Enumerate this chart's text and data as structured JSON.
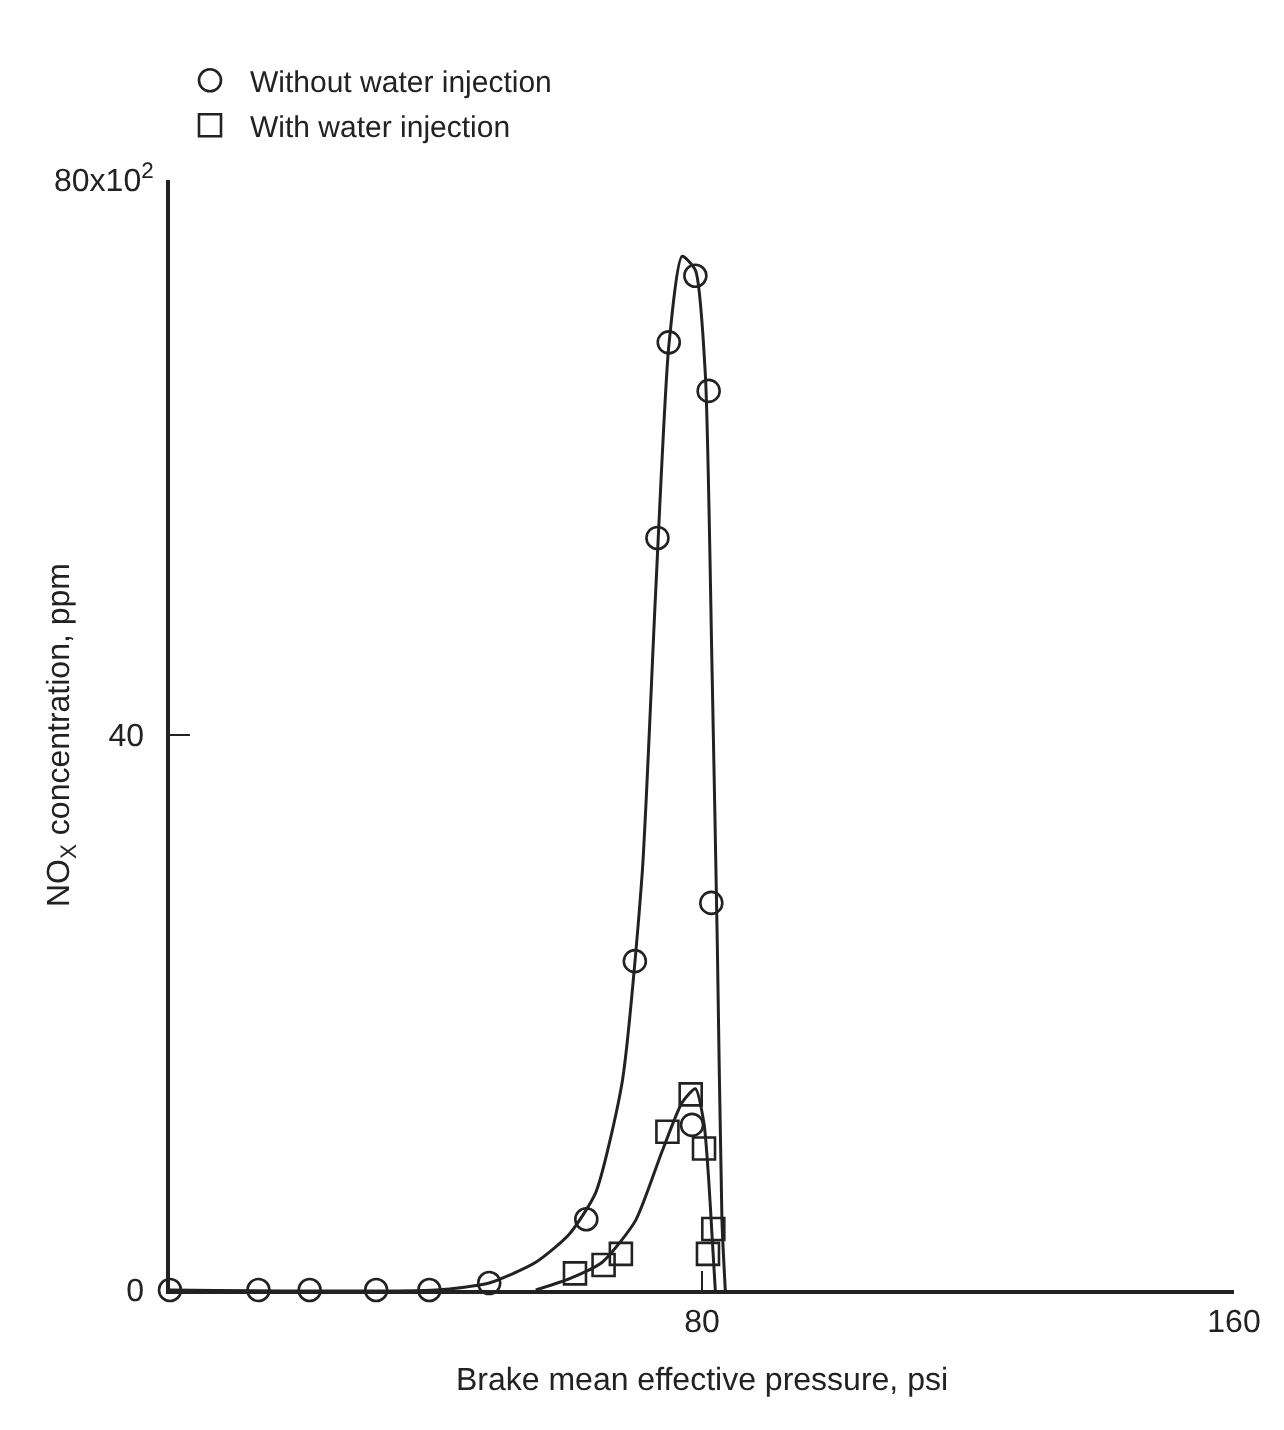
{
  "chart_data": {
    "type": "scatter",
    "xlabel": "Brake mean effective pressure, psi",
    "ylabel": "NO$_{X}$ concentration, ppm",
    "xlim": [
      0,
      160
    ],
    "xticks": [
      {
        "value": 0,
        "label": null
      },
      80,
      160
    ],
    "ylim": [
      0,
      80
    ],
    "yticks": [
      0,
      40
    ],
    "annotations": [
      "80x10$^{2}$"
    ],
    "legend": "top left",
    "series": [
      {
        "name": "Without water injection",
        "color": "#222222",
        "marker": "circle",
        "x": [
          0,
          13.3,
          21,
          31,
          39,
          48,
          62.6,
          69.9,
          73.3,
          75,
          79,
          81,
          81.4,
          78.5
        ],
        "values": [
          0,
          0,
          0,
          0,
          0,
          0.5,
          5.1,
          23.7,
          54.2,
          68.3,
          73.1,
          64.8,
          27.9,
          11.9
        ]
      },
      {
        "name": "With water injection",
        "color": "#222222",
        "marker": "square",
        "x": [
          60.9,
          65.2,
          67.8,
          74.8,
          78.3,
          80.3,
          81.7,
          80.9
        ],
        "values": [
          1.2,
          1.8,
          2.6,
          11.4,
          14.1,
          10.2,
          4.4,
          2.6
        ]
      },
      {
        "type": "line",
        "color": "#222222",
        "x": [
          0,
          40,
          48,
          55,
          60,
          64,
          68,
          71,
          73,
          75,
          77,
          79,
          80.5,
          81.5,
          82.3,
          83,
          83.5
        ],
        "values": [
          0,
          0,
          0.5,
          2,
          4,
          7,
          15,
          30,
          50,
          68,
          74.5,
          73.5,
          66,
          45,
          25,
          5,
          0
        ]
      },
      {
        "type": "line",
        "color": "#222222",
        "x": [
          55,
          60,
          65,
          70,
          74,
          77,
          79,
          80.3,
          81,
          81.5,
          82
        ],
        "values": [
          0,
          0.8,
          2,
          5,
          10,
          13.5,
          14.5,
          12,
          8,
          4,
          0
        ]
      }
    ]
  }
}
